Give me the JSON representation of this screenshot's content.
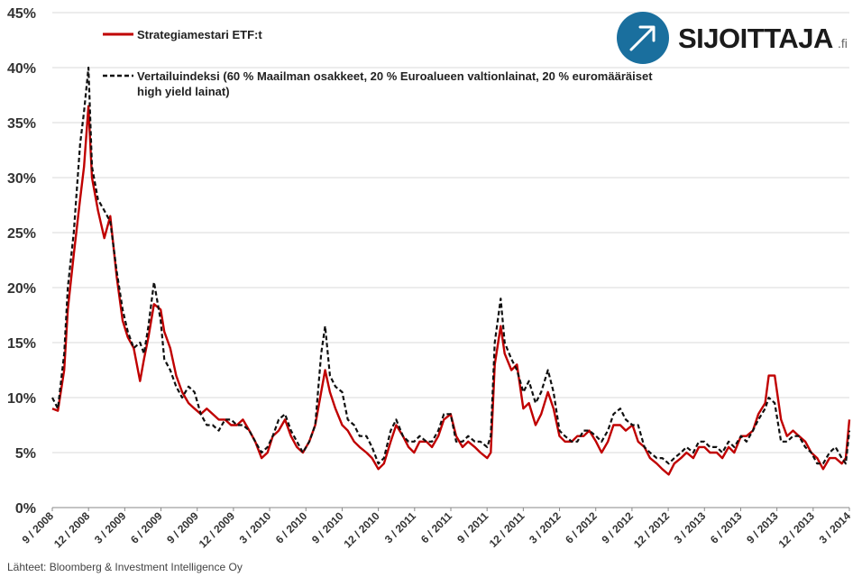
{
  "chart_data": {
    "type": "line",
    "y_unit": "%",
    "ylim": [
      0,
      45
    ],
    "yticks": [
      "0%",
      "5%",
      "10%",
      "15%",
      "20%",
      "25%",
      "30%",
      "35%",
      "40%",
      "45%"
    ],
    "x_ticks": [
      "9 / 2008",
      "12 / 2008",
      "3 / 2009",
      "6 / 2009",
      "9 / 2009",
      "12 / 2009",
      "3 / 2010",
      "6 / 2010",
      "9 / 2010",
      "12 / 2010",
      "3 / 2011",
      "6 / 2011",
      "9 / 2011",
      "12 / 2011",
      "3 / 2012",
      "6 / 2012",
      "9 / 2012",
      "12 / 2012",
      "3 / 2013",
      "6 / 2013",
      "9 / 2013",
      "12 / 2013",
      "3 / 2014"
    ],
    "grid": true,
    "legend_position": "top-left",
    "series": [
      {
        "name": "Strategiamestari ETF:t",
        "color": "#c00000",
        "style": "solid",
        "points": [
          [
            "2008-09-01",
            9.0
          ],
          [
            "2008-09-15",
            8.8
          ],
          [
            "2008-10-01",
            12.5
          ],
          [
            "2008-10-10",
            18.0
          ],
          [
            "2008-10-25",
            23.0
          ],
          [
            "2008-11-10",
            28.0
          ],
          [
            "2008-11-20",
            31.0
          ],
          [
            "2008-12-01",
            36.5
          ],
          [
            "2008-12-10",
            30.0
          ],
          [
            "2008-12-25",
            27.0
          ],
          [
            "2009-01-10",
            24.5
          ],
          [
            "2009-01-25",
            26.5
          ],
          [
            "2009-02-10",
            21.0
          ],
          [
            "2009-02-25",
            17.0
          ],
          [
            "2009-03-10",
            15.5
          ],
          [
            "2009-03-25",
            14.5
          ],
          [
            "2009-04-10",
            11.5
          ],
          [
            "2009-04-20",
            13.5
          ],
          [
            "2009-05-01",
            15.5
          ],
          [
            "2009-05-15",
            18.5
          ],
          [
            "2009-06-01",
            18.0
          ],
          [
            "2009-06-10",
            16.0
          ],
          [
            "2009-06-25",
            14.5
          ],
          [
            "2009-07-10",
            12.0
          ],
          [
            "2009-07-25",
            10.5
          ],
          [
            "2009-08-10",
            9.5
          ],
          [
            "2009-08-25",
            9.0
          ],
          [
            "2009-09-10",
            8.5
          ],
          [
            "2009-09-25",
            9.0
          ],
          [
            "2009-10-10",
            8.5
          ],
          [
            "2009-10-25",
            8.0
          ],
          [
            "2009-11-10",
            8.0
          ],
          [
            "2009-11-25",
            7.5
          ],
          [
            "2009-12-10",
            7.5
          ],
          [
            "2009-12-25",
            8.0
          ],
          [
            "2010-01-10",
            7.0
          ],
          [
            "2010-01-25",
            6.0
          ],
          [
            "2010-02-10",
            4.5
          ],
          [
            "2010-02-25",
            5.0
          ],
          [
            "2010-03-10",
            6.5
          ],
          [
            "2010-03-25",
            7.0
          ],
          [
            "2010-04-10",
            8.0
          ],
          [
            "2010-04-25",
            6.5
          ],
          [
            "2010-05-10",
            5.5
          ],
          [
            "2010-05-25",
            5.0
          ],
          [
            "2010-06-10",
            6.0
          ],
          [
            "2010-06-25",
            7.5
          ],
          [
            "2010-07-10",
            10.5
          ],
          [
            "2010-07-20",
            12.5
          ],
          [
            "2010-08-01",
            10.5
          ],
          [
            "2010-08-15",
            9.0
          ],
          [
            "2010-09-01",
            7.5
          ],
          [
            "2010-09-15",
            7.0
          ],
          [
            "2010-10-01",
            6.0
          ],
          [
            "2010-10-15",
            5.5
          ],
          [
            "2010-11-01",
            5.0
          ],
          [
            "2010-11-15",
            4.5
          ],
          [
            "2010-12-01",
            3.5
          ],
          [
            "2010-12-15",
            4.0
          ],
          [
            "2011-01-01",
            6.0
          ],
          [
            "2011-01-15",
            7.5
          ],
          [
            "2011-02-01",
            6.5
          ],
          [
            "2011-02-15",
            5.5
          ],
          [
            "2011-03-01",
            5.0
          ],
          [
            "2011-03-15",
            6.0
          ],
          [
            "2011-04-01",
            6.0
          ],
          [
            "2011-04-15",
            5.5
          ],
          [
            "2011-05-01",
            6.5
          ],
          [
            "2011-05-15",
            8.0
          ],
          [
            "2011-06-01",
            8.5
          ],
          [
            "2011-06-15",
            6.5
          ],
          [
            "2011-07-01",
            5.5
          ],
          [
            "2011-07-15",
            6.0
          ],
          [
            "2011-08-01",
            5.5
          ],
          [
            "2011-08-15",
            5.0
          ],
          [
            "2011-09-01",
            4.5
          ],
          [
            "2011-09-10",
            5.0
          ],
          [
            "2011-09-20",
            13.0
          ],
          [
            "2011-10-05",
            16.5
          ],
          [
            "2011-10-15",
            14.0
          ],
          [
            "2011-11-01",
            12.5
          ],
          [
            "2011-11-15",
            13.0
          ],
          [
            "2011-12-01",
            9.0
          ],
          [
            "2011-12-15",
            9.5
          ],
          [
            "2012-01-01",
            7.5
          ],
          [
            "2012-01-15",
            8.5
          ],
          [
            "2012-02-01",
            10.5
          ],
          [
            "2012-02-15",
            9.0
          ],
          [
            "2012-03-01",
            6.5
          ],
          [
            "2012-03-15",
            6.0
          ],
          [
            "2012-04-01",
            6.0
          ],
          [
            "2012-04-15",
            6.5
          ],
          [
            "2012-05-01",
            6.5
          ],
          [
            "2012-05-15",
            7.0
          ],
          [
            "2012-06-01",
            6.0
          ],
          [
            "2012-06-15",
            5.0
          ],
          [
            "2012-07-01",
            6.0
          ],
          [
            "2012-07-15",
            7.5
          ],
          [
            "2012-08-01",
            7.5
          ],
          [
            "2012-08-15",
            7.0
          ],
          [
            "2012-09-01",
            7.5
          ],
          [
            "2012-09-15",
            6.0
          ],
          [
            "2012-10-01",
            5.5
          ],
          [
            "2012-10-15",
            4.5
          ],
          [
            "2012-11-01",
            4.0
          ],
          [
            "2012-11-15",
            3.5
          ],
          [
            "2012-12-01",
            3.0
          ],
          [
            "2012-12-15",
            4.0
          ],
          [
            "2013-01-01",
            4.5
          ],
          [
            "2013-01-15",
            5.0
          ],
          [
            "2013-02-01",
            4.5
          ],
          [
            "2013-02-15",
            5.5
          ],
          [
            "2013-03-01",
            5.5
          ],
          [
            "2013-03-15",
            5.0
          ],
          [
            "2013-04-01",
            5.0
          ],
          [
            "2013-04-15",
            4.5
          ],
          [
            "2013-05-01",
            5.5
          ],
          [
            "2013-05-15",
            5.0
          ],
          [
            "2013-06-01",
            6.5
          ],
          [
            "2013-06-15",
            6.5
          ],
          [
            "2013-07-01",
            7.0
          ],
          [
            "2013-07-15",
            8.5
          ],
          [
            "2013-08-01",
            9.5
          ],
          [
            "2013-08-10",
            12.0
          ],
          [
            "2013-08-25",
            12.0
          ],
          [
            "2013-09-10",
            8.0
          ],
          [
            "2013-09-25",
            6.5
          ],
          [
            "2013-10-10",
            7.0
          ],
          [
            "2013-10-25",
            6.5
          ],
          [
            "2013-11-10",
            6.0
          ],
          [
            "2013-11-25",
            5.0
          ],
          [
            "2013-12-10",
            4.5
          ],
          [
            "2013-12-25",
            3.5
          ],
          [
            "2014-01-10",
            4.5
          ],
          [
            "2014-01-25",
            4.5
          ],
          [
            "2014-02-10",
            4.0
          ],
          [
            "2014-02-20",
            4.5
          ],
          [
            "2014-03-01",
            8.0
          ]
        ]
      },
      {
        "name": "Vertailuindeksi (60 % Maailman osakkeet, 20 % Euroalueen valtionlainat, 20 % euromääräiset high yield lainat)",
        "color": "#111111",
        "style": "dashed",
        "points": [
          [
            "2008-09-01",
            10.0
          ],
          [
            "2008-09-15",
            9.0
          ],
          [
            "2008-10-01",
            14.0
          ],
          [
            "2008-10-10",
            20.0
          ],
          [
            "2008-10-25",
            25.0
          ],
          [
            "2008-11-10",
            33.0
          ],
          [
            "2008-11-20",
            36.0
          ],
          [
            "2008-12-01",
            40.0
          ],
          [
            "2008-12-10",
            31.0
          ],
          [
            "2008-12-25",
            28.0
          ],
          [
            "2009-01-10",
            27.0
          ],
          [
            "2009-01-25",
            26.0
          ],
          [
            "2009-02-10",
            21.5
          ],
          [
            "2009-02-25",
            18.0
          ],
          [
            "2009-03-10",
            16.0
          ],
          [
            "2009-03-25",
            14.5
          ],
          [
            "2009-04-10",
            15.0
          ],
          [
            "2009-04-20",
            14.0
          ],
          [
            "2009-05-01",
            16.5
          ],
          [
            "2009-05-15",
            20.5
          ],
          [
            "2009-06-01",
            17.0
          ],
          [
            "2009-06-10",
            13.5
          ],
          [
            "2009-06-25",
            12.5
          ],
          [
            "2009-07-10",
            11.0
          ],
          [
            "2009-07-25",
            10.0
          ],
          [
            "2009-08-10",
            11.0
          ],
          [
            "2009-08-25",
            10.5
          ],
          [
            "2009-09-10",
            8.5
          ],
          [
            "2009-09-25",
            7.5
          ],
          [
            "2009-10-10",
            7.5
          ],
          [
            "2009-10-25",
            7.0
          ],
          [
            "2009-11-10",
            8.0
          ],
          [
            "2009-11-25",
            8.0
          ],
          [
            "2009-12-10",
            7.5
          ],
          [
            "2009-12-25",
            7.5
          ],
          [
            "2010-01-10",
            7.0
          ],
          [
            "2010-01-25",
            6.0
          ],
          [
            "2010-02-10",
            5.0
          ],
          [
            "2010-02-25",
            5.5
          ],
          [
            "2010-03-10",
            6.5
          ],
          [
            "2010-03-25",
            8.0
          ],
          [
            "2010-04-10",
            8.5
          ],
          [
            "2010-04-25",
            7.0
          ],
          [
            "2010-05-10",
            6.0
          ],
          [
            "2010-05-25",
            5.0
          ],
          [
            "2010-06-10",
            6.0
          ],
          [
            "2010-06-25",
            7.5
          ],
          [
            "2010-07-10",
            14.0
          ],
          [
            "2010-07-20",
            16.5
          ],
          [
            "2010-08-01",
            12.0
          ],
          [
            "2010-08-15",
            11.0
          ],
          [
            "2010-09-01",
            10.5
          ],
          [
            "2010-09-15",
            8.0
          ],
          [
            "2010-10-01",
            7.5
          ],
          [
            "2010-10-15",
            6.5
          ],
          [
            "2010-11-01",
            6.5
          ],
          [
            "2010-11-15",
            5.5
          ],
          [
            "2010-12-01",
            4.0
          ],
          [
            "2010-12-15",
            4.5
          ],
          [
            "2011-01-01",
            7.0
          ],
          [
            "2011-01-15",
            8.0
          ],
          [
            "2011-02-01",
            6.5
          ],
          [
            "2011-02-15",
            6.0
          ],
          [
            "2011-03-01",
            6.0
          ],
          [
            "2011-03-15",
            6.5
          ],
          [
            "2011-04-01",
            6.0
          ],
          [
            "2011-04-15",
            6.0
          ],
          [
            "2011-05-01",
            7.0
          ],
          [
            "2011-05-15",
            8.5
          ],
          [
            "2011-06-01",
            8.5
          ],
          [
            "2011-06-15",
            6.0
          ],
          [
            "2011-07-01",
            6.0
          ],
          [
            "2011-07-15",
            6.5
          ],
          [
            "2011-08-01",
            6.0
          ],
          [
            "2011-08-15",
            6.0
          ],
          [
            "2011-09-01",
            5.5
          ],
          [
            "2011-09-10",
            6.5
          ],
          [
            "2011-09-20",
            15.0
          ],
          [
            "2011-10-05",
            19.0
          ],
          [
            "2011-10-15",
            15.0
          ],
          [
            "2011-11-01",
            13.5
          ],
          [
            "2011-11-15",
            12.5
          ],
          [
            "2011-12-01",
            10.5
          ],
          [
            "2011-12-15",
            11.5
          ],
          [
            "2012-01-01",
            9.5
          ],
          [
            "2012-01-15",
            10.5
          ],
          [
            "2012-02-01",
            12.5
          ],
          [
            "2012-02-15",
            10.5
          ],
          [
            "2012-03-01",
            7.0
          ],
          [
            "2012-03-15",
            6.5
          ],
          [
            "2012-04-01",
            6.0
          ],
          [
            "2012-04-15",
            6.0
          ],
          [
            "2012-05-01",
            7.0
          ],
          [
            "2012-05-15",
            7.0
          ],
          [
            "2012-06-01",
            6.5
          ],
          [
            "2012-06-15",
            6.0
          ],
          [
            "2012-07-01",
            7.0
          ],
          [
            "2012-07-15",
            8.5
          ],
          [
            "2012-08-01",
            9.0
          ],
          [
            "2012-08-15",
            8.0
          ],
          [
            "2012-09-01",
            7.5
          ],
          [
            "2012-09-15",
            7.5
          ],
          [
            "2012-10-01",
            5.5
          ],
          [
            "2012-10-15",
            5.0
          ],
          [
            "2012-11-01",
            4.5
          ],
          [
            "2012-11-15",
            4.5
          ],
          [
            "2012-12-01",
            4.0
          ],
          [
            "2012-12-15",
            4.5
          ],
          [
            "2013-01-01",
            5.0
          ],
          [
            "2013-01-15",
            5.5
          ],
          [
            "2013-02-01",
            5.0
          ],
          [
            "2013-02-15",
            6.0
          ],
          [
            "2013-03-01",
            6.0
          ],
          [
            "2013-03-15",
            5.5
          ],
          [
            "2013-04-01",
            5.5
          ],
          [
            "2013-04-15",
            5.0
          ],
          [
            "2013-05-01",
            6.0
          ],
          [
            "2013-05-15",
            5.5
          ],
          [
            "2013-06-01",
            6.5
          ],
          [
            "2013-06-15",
            6.0
          ],
          [
            "2013-07-01",
            7.0
          ],
          [
            "2013-07-15",
            8.0
          ],
          [
            "2013-08-01",
            9.0
          ],
          [
            "2013-08-10",
            10.0
          ],
          [
            "2013-08-25",
            9.5
          ],
          [
            "2013-09-10",
            6.0
          ],
          [
            "2013-09-25",
            6.0
          ],
          [
            "2013-10-10",
            6.5
          ],
          [
            "2013-10-25",
            6.5
          ],
          [
            "2013-11-10",
            5.5
          ],
          [
            "2013-11-25",
            5.0
          ],
          [
            "2013-12-10",
            4.0
          ],
          [
            "2013-12-25",
            4.0
          ],
          [
            "2014-01-10",
            5.0
          ],
          [
            "2014-01-25",
            5.5
          ],
          [
            "2014-02-10",
            4.5
          ],
          [
            "2014-02-20",
            4.0
          ],
          [
            "2014-03-01",
            7.0
          ]
        ]
      }
    ]
  },
  "logo": {
    "text": "SIJOITTAJA",
    "suffix": ".fi",
    "brand_color": "#1a6f9e"
  },
  "source": "Lähteet: Bloomberg & Investment Intelligence Oy"
}
